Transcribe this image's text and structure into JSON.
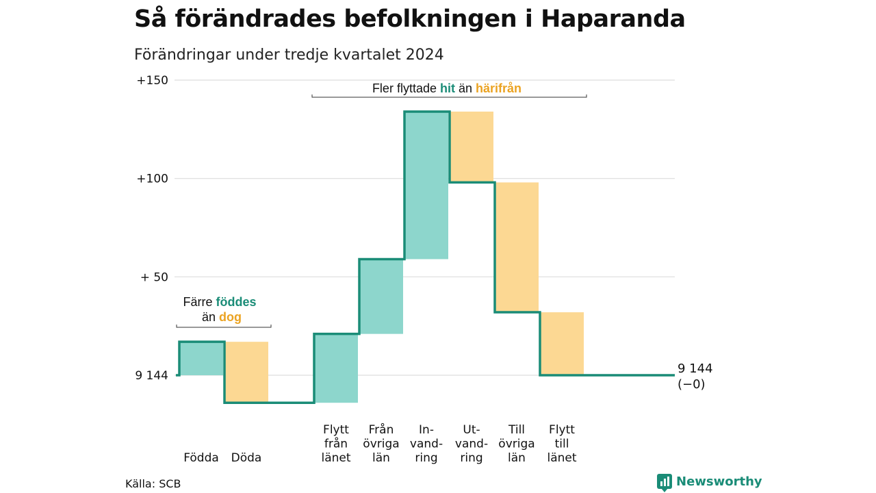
{
  "title": "Så förändrades befolkningen i Haparanda",
  "subtitle": "Förändringar under tredje kvartalet 2024",
  "source": "Källa: SCB",
  "logo": {
    "text": "Newsworthy",
    "icon": "bar-chart-icon"
  },
  "colors": {
    "positive": "#8dd6cc",
    "negative": "#fcd893",
    "line": "#1a8c77",
    "positive_text": "#1a8c77",
    "negative_text": "#eba322",
    "grid": "#dddddd"
  },
  "chart_data": {
    "type": "waterfall",
    "baseline": 9144,
    "ylim": [
      -14,
      150
    ],
    "yticks": [
      {
        "value": 0,
        "label": "9 144"
      },
      {
        "value": 50,
        "label": "+ 50"
      },
      {
        "value": 100,
        "label": "+100"
      },
      {
        "value": 150,
        "label": "+150"
      }
    ],
    "steps": [
      {
        "label": [
          "Födda"
        ],
        "delta": 17,
        "kind": "positive"
      },
      {
        "label": [
          "Döda"
        ],
        "delta": -31,
        "kind": "negative"
      },
      {
        "label": [
          "Flytt",
          "från",
          "länet"
        ],
        "delta": 35,
        "kind": "positive"
      },
      {
        "label": [
          "Från",
          "övriga",
          "län"
        ],
        "delta": 38,
        "kind": "positive"
      },
      {
        "label": [
          "In-",
          "vand-",
          "ring"
        ],
        "delta": 75,
        "kind": "positive"
      },
      {
        "label": [
          "Ut-",
          "vand-",
          "ring"
        ],
        "delta": -36,
        "kind": "negative"
      },
      {
        "label": [
          "Till",
          "övriga",
          "län"
        ],
        "delta": -66,
        "kind": "negative"
      },
      {
        "label": [
          "Flytt",
          "till",
          "länet"
        ],
        "delta": -32,
        "kind": "negative"
      }
    ],
    "end_label": {
      "value": "9 144",
      "change": "(−0)"
    },
    "annotations": [
      {
        "parts": [
          {
            "text": "Färre ",
            "style": "plain"
          },
          {
            "text": "föddes",
            "style": "positive"
          }
        ],
        "parts2": [
          {
            "text": "än ",
            "style": "plain"
          },
          {
            "text": "dog",
            "style": "negative"
          }
        ]
      },
      {
        "parts": [
          {
            "text": "Fler flyttade ",
            "style": "plain"
          },
          {
            "text": "hit",
            "style": "positive"
          },
          {
            "text": " än ",
            "style": "plain"
          },
          {
            "text": "härifrån",
            "style": "negative"
          }
        ]
      }
    ]
  }
}
